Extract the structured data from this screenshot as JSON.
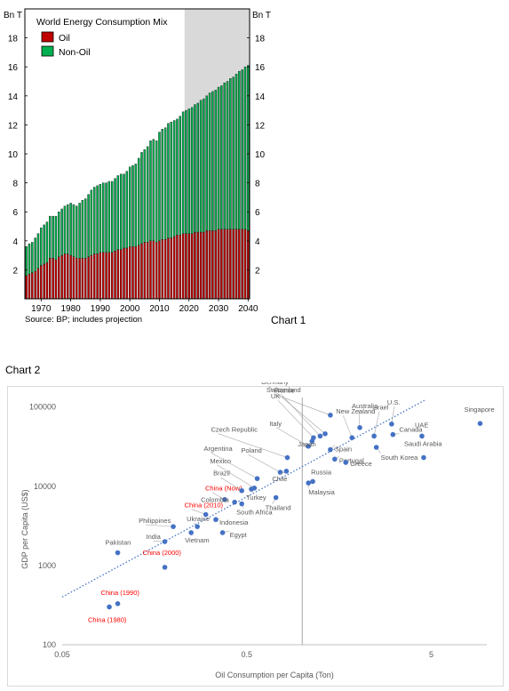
{
  "chart1": {
    "caption": "Chart 1",
    "chart_data": {
      "type": "bar",
      "title": "World Energy Consumption Mix",
      "unit_left": "Bn T",
      "unit_right": "Bn T",
      "source": "Source: BP; includes projection",
      "stacked": true,
      "ylim": [
        0,
        20
      ],
      "y_ticks": [
        2,
        4,
        6,
        8,
        10,
        12,
        14,
        16,
        18
      ],
      "x_tick_labels": [
        "1970",
        "1980",
        "1990",
        "2000",
        "2010",
        "2020",
        "2030",
        "2040"
      ],
      "x_tick_years": [
        1970,
        1980,
        1990,
        2000,
        2010,
        2020,
        2030,
        2040
      ],
      "projection_shaded_from": 2019,
      "colors": {
        "oil": "#c00000",
        "non_oil": "#00b050",
        "projection": "#d9d9d9",
        "outline": "#000000"
      },
      "years": [
        1965,
        1966,
        1967,
        1968,
        1969,
        1970,
        1971,
        1972,
        1973,
        1974,
        1975,
        1976,
        1977,
        1978,
        1979,
        1980,
        1981,
        1982,
        1983,
        1984,
        1985,
        1986,
        1987,
        1988,
        1989,
        1990,
        1991,
        1992,
        1993,
        1994,
        1995,
        1996,
        1997,
        1998,
        1999,
        2000,
        2001,
        2002,
        2003,
        2004,
        2005,
        2006,
        2007,
        2008,
        2009,
        2010,
        2011,
        2012,
        2013,
        2014,
        2015,
        2016,
        2017,
        2018,
        2019,
        2020,
        2021,
        2022,
        2023,
        2024,
        2025,
        2026,
        2027,
        2028,
        2029,
        2030,
        2031,
        2032,
        2033,
        2034,
        2035,
        2036,
        2037,
        2038,
        2039,
        2040
      ],
      "series": [
        {
          "name": "Oil",
          "values": [
            1.6,
            1.7,
            1.8,
            1.9,
            2.1,
            2.3,
            2.4,
            2.5,
            2.8,
            2.8,
            2.7,
            2.9,
            3.0,
            3.1,
            3.1,
            3.0,
            2.9,
            2.8,
            2.8,
            2.8,
            2.8,
            2.9,
            3.0,
            3.1,
            3.1,
            3.2,
            3.2,
            3.2,
            3.2,
            3.2,
            3.3,
            3.4,
            3.4,
            3.5,
            3.5,
            3.6,
            3.6,
            3.6,
            3.7,
            3.8,
            3.9,
            3.9,
            4.0,
            4.0,
            3.9,
            4.0,
            4.1,
            4.1,
            4.2,
            4.2,
            4.3,
            4.4,
            4.4,
            4.5,
            4.5,
            4.5,
            4.5,
            4.6,
            4.6,
            4.6,
            4.6,
            4.7,
            4.7,
            4.7,
            4.7,
            4.8,
            4.8,
            4.8,
            4.8,
            4.8,
            4.8,
            4.8,
            4.8,
            4.8,
            4.8,
            4.7
          ]
        },
        {
          "name": "Non-Oil",
          "values": [
            2.0,
            2.1,
            2.1,
            2.3,
            2.4,
            2.6,
            2.7,
            2.8,
            2.9,
            2.9,
            3.0,
            3.1,
            3.2,
            3.3,
            3.4,
            3.6,
            3.6,
            3.6,
            3.8,
            4.0,
            4.1,
            4.3,
            4.5,
            4.6,
            4.7,
            4.7,
            4.8,
            4.8,
            4.9,
            4.9,
            5.0,
            5.1,
            5.2,
            5.1,
            5.3,
            5.5,
            5.6,
            5.7,
            6.0,
            6.3,
            6.4,
            6.6,
            6.9,
            7.0,
            7.0,
            7.5,
            7.6,
            7.7,
            7.9,
            8.0,
            8.0,
            8.0,
            8.2,
            8.4,
            8.5,
            8.6,
            8.7,
            8.8,
            8.9,
            9.1,
            9.2,
            9.3,
            9.5,
            9.6,
            9.7,
            9.8,
            9.9,
            10.1,
            10.2,
            10.4,
            10.5,
            10.7,
            10.9,
            11.0,
            11.2,
            11.4
          ]
        }
      ]
    }
  },
  "chart2": {
    "caption": "Chart 2",
    "chart_data": {
      "type": "scatter",
      "xlabel": "Oil Consumption per Capita (Ton)",
      "ylabel": "GDP per Capita (US$)",
      "xscale": "log",
      "yscale": "log",
      "xlim": [
        0.05,
        10
      ],
      "ylim": [
        100,
        150000
      ],
      "x_ticks": [
        0.05,
        0.5,
        5
      ],
      "x_tick_labels": [
        "0.05",
        "0.5",
        "5"
      ],
      "y_ticks": [
        100,
        1000,
        10000,
        100000
      ],
      "y_tick_labels": [
        "100",
        "1000",
        "10000",
        "100000"
      ],
      "vertical_reference_x": 1.0,
      "trendline": {
        "style": "dotted",
        "from": [
          0.05,
          400
        ],
        "to": [
          4.7,
          125000
        ]
      },
      "colors": {
        "point": "#4472c4",
        "trend": "#4472c4",
        "china_label": "#ff0000",
        "label": "#595959"
      },
      "points": [
        {
          "label": "China (1980)",
          "x": 0.09,
          "y": 300,
          "highlight": true
        },
        {
          "label": "China (1990)",
          "x": 0.1,
          "y": 330,
          "highlight": true
        },
        {
          "label": "China (2000)",
          "x": 0.18,
          "y": 950,
          "highlight": true
        },
        {
          "label": "China (2010)",
          "x": 0.3,
          "y": 4400,
          "highlight": true
        },
        {
          "label": "China (Now)",
          "x": 0.38,
          "y": 6800,
          "highlight": true
        },
        {
          "label": "Pakistan",
          "x": 0.1,
          "y": 1450,
          "highlight": false
        },
        {
          "label": "India",
          "x": 0.18,
          "y": 2000,
          "highlight": false
        },
        {
          "label": "Philippines",
          "x": 0.2,
          "y": 3100,
          "highlight": false
        },
        {
          "label": "Vietnam",
          "x": 0.25,
          "y": 2600,
          "highlight": false
        },
        {
          "label": "Ukraine",
          "x": 0.27,
          "y": 3100,
          "highlight": false
        },
        {
          "label": "Indonesia",
          "x": 0.34,
          "y": 3800,
          "highlight": false
        },
        {
          "label": "Egypt",
          "x": 0.37,
          "y": 2600,
          "highlight": false
        },
        {
          "label": "Colombia",
          "x": 0.43,
          "y": 6300,
          "highlight": false
        },
        {
          "label": "South Africa",
          "x": 0.47,
          "y": 6000,
          "highlight": false
        },
        {
          "label": "Brazil",
          "x": 0.47,
          "y": 8800,
          "highlight": false
        },
        {
          "label": "Turkey",
          "x": 0.53,
          "y": 9200,
          "highlight": false
        },
        {
          "label": "Mexico",
          "x": 0.55,
          "y": 9500,
          "highlight": false
        },
        {
          "label": "Argentina",
          "x": 0.57,
          "y": 12500,
          "highlight": false
        },
        {
          "label": "Thailand",
          "x": 0.72,
          "y": 7200,
          "highlight": false
        },
        {
          "label": "Poland",
          "x": 0.76,
          "y": 15000,
          "highlight": false
        },
        {
          "label": "Chile",
          "x": 0.82,
          "y": 15500,
          "highlight": false
        },
        {
          "label": "Czech Republic",
          "x": 0.83,
          "y": 23000,
          "highlight": false
        },
        {
          "label": "Malaysia",
          "x": 1.08,
          "y": 11000,
          "highlight": false
        },
        {
          "label": "Russia",
          "x": 1.14,
          "y": 11500,
          "highlight": false
        },
        {
          "label": "Italy",
          "x": 1.08,
          "y": 32000,
          "highlight": false
        },
        {
          "label": "Japan",
          "x": 1.13,
          "y": 37000,
          "highlight": false
        },
        {
          "label": "UK",
          "x": 1.15,
          "y": 41000,
          "highlight": false
        },
        {
          "label": "France",
          "x": 1.25,
          "y": 43000,
          "highlight": false
        },
        {
          "label": "Germany",
          "x": 1.33,
          "y": 46000,
          "highlight": false
        },
        {
          "label": "Switzerland",
          "x": 1.42,
          "y": 79000,
          "highlight": false
        },
        {
          "label": "Spain",
          "x": 1.42,
          "y": 29000,
          "highlight": false
        },
        {
          "label": "Portugal",
          "x": 1.5,
          "y": 22000,
          "highlight": false
        },
        {
          "label": "Greece",
          "x": 1.72,
          "y": 20000,
          "highlight": false
        },
        {
          "label": "New Zealand",
          "x": 1.86,
          "y": 41000,
          "highlight": false
        },
        {
          "label": "Australia",
          "x": 2.05,
          "y": 55000,
          "highlight": false
        },
        {
          "label": "South Korea",
          "x": 2.52,
          "y": 31000,
          "highlight": false
        },
        {
          "label": "Israel",
          "x": 2.45,
          "y": 43000,
          "highlight": false
        },
        {
          "label": "U.S.",
          "x": 3.05,
          "y": 61000,
          "highlight": false
        },
        {
          "label": "Canada",
          "x": 3.1,
          "y": 45000,
          "highlight": false
        },
        {
          "label": "UAE",
          "x": 4.45,
          "y": 43000,
          "highlight": false
        },
        {
          "label": "Saudi Arabia",
          "x": 4.55,
          "y": 23000,
          "highlight": false
        },
        {
          "label": "Singapore",
          "x": 9.2,
          "y": 62000,
          "highlight": false
        }
      ]
    }
  }
}
